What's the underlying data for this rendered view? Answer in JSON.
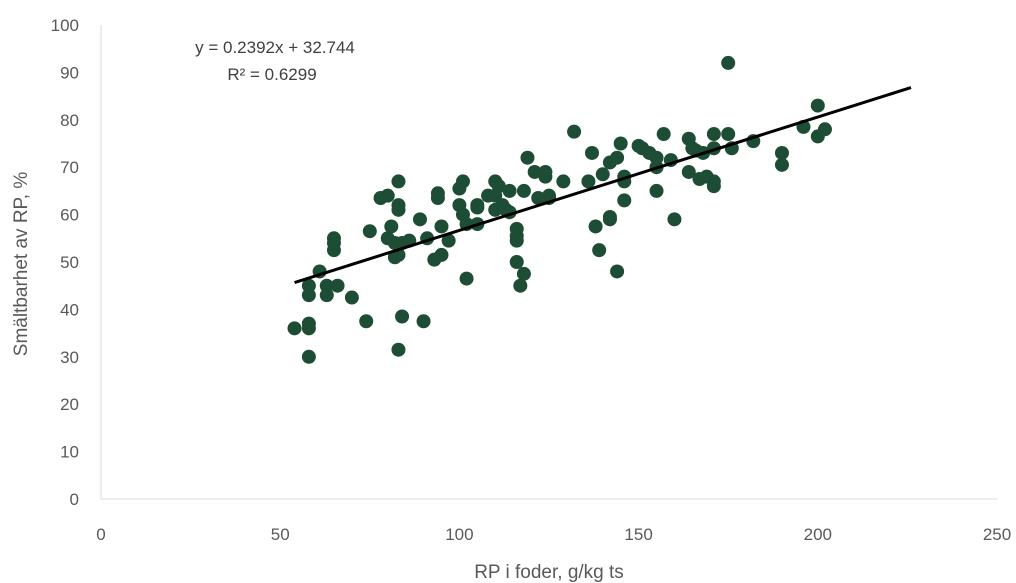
{
  "chart_data": {
    "type": "scatter",
    "xlabel": "RP i foder, g/kg ts",
    "ylabel": "Smältbarhet av RP, %",
    "xlim": [
      0,
      250
    ],
    "ylim": [
      0,
      100
    ],
    "xticks": [
      0,
      50,
      100,
      150,
      200,
      250
    ],
    "yticks": [
      0,
      10,
      20,
      30,
      40,
      50,
      60,
      70,
      80,
      90,
      100
    ],
    "grid": false,
    "marker_color": "#1e4d35",
    "trendline": {
      "slope": 0.2392,
      "intercept": 32.744,
      "x_range": [
        54,
        226
      ],
      "color": "#000000",
      "equation": "y = 0.2392x + 32.744",
      "r2": "R² = 0.6299"
    },
    "points": [
      [
        54,
        36
      ],
      [
        58,
        30
      ],
      [
        58,
        36
      ],
      [
        58,
        37
      ],
      [
        58,
        43
      ],
      [
        58,
        45
      ],
      [
        61,
        48
      ],
      [
        63,
        43
      ],
      [
        63,
        45
      ],
      [
        65,
        52.5
      ],
      [
        65,
        54
      ],
      [
        65,
        55
      ],
      [
        66,
        45
      ],
      [
        70,
        42.5
      ],
      [
        74,
        37.5
      ],
      [
        75,
        56.5
      ],
      [
        78,
        63.5
      ],
      [
        80,
        55
      ],
      [
        80,
        64
      ],
      [
        81,
        57.5
      ],
      [
        82,
        51
      ],
      [
        82,
        54
      ],
      [
        83,
        31.5
      ],
      [
        83,
        51.5
      ],
      [
        83,
        61
      ],
      [
        83,
        62
      ],
      [
        83,
        67
      ],
      [
        84,
        38.5
      ],
      [
        84,
        54
      ],
      [
        86,
        54.5
      ],
      [
        89,
        59
      ],
      [
        90,
        37.5
      ],
      [
        91,
        55
      ],
      [
        93,
        50.5
      ],
      [
        94,
        63.5
      ],
      [
        94,
        64.5
      ],
      [
        95,
        51.5
      ],
      [
        95,
        57.5
      ],
      [
        97,
        54.5
      ],
      [
        100,
        62
      ],
      [
        100,
        65.5
      ],
      [
        101,
        60
      ],
      [
        101,
        67
      ],
      [
        102,
        46.5
      ],
      [
        102,
        58
      ],
      [
        105,
        58
      ],
      [
        105,
        61.5
      ],
      [
        105,
        62
      ],
      [
        108,
        64
      ],
      [
        110,
        61
      ],
      [
        110,
        64
      ],
      [
        110,
        67
      ],
      [
        111,
        66
      ],
      [
        112,
        62
      ],
      [
        113,
        61
      ],
      [
        114,
        60.5
      ],
      [
        114,
        65
      ],
      [
        116,
        50
      ],
      [
        116,
        54.5
      ],
      [
        116,
        55.5
      ],
      [
        116,
        57
      ],
      [
        117,
        45
      ],
      [
        118,
        47.5
      ],
      [
        118,
        65
      ],
      [
        119,
        72
      ],
      [
        121,
        69
      ],
      [
        122,
        63.5
      ],
      [
        124,
        68
      ],
      [
        124,
        69
      ],
      [
        125,
        63.5
      ],
      [
        125,
        64
      ],
      [
        129,
        67
      ],
      [
        132,
        77.5
      ],
      [
        136,
        67
      ],
      [
        137,
        73
      ],
      [
        138,
        57.5
      ],
      [
        139,
        52.5
      ],
      [
        140,
        68.5
      ],
      [
        142,
        59
      ],
      [
        142,
        59.5
      ],
      [
        142,
        71
      ],
      [
        144,
        48
      ],
      [
        144,
        72
      ],
      [
        145,
        75
      ],
      [
        146,
        63
      ],
      [
        146,
        67
      ],
      [
        146,
        68
      ],
      [
        150,
        74.5
      ],
      [
        151,
        74
      ],
      [
        153,
        73
      ],
      [
        155,
        65
      ],
      [
        155,
        70
      ],
      [
        155,
        72
      ],
      [
        157,
        77
      ],
      [
        159,
        71.5
      ],
      [
        160,
        59
      ],
      [
        164,
        69
      ],
      [
        164,
        76
      ],
      [
        165,
        74
      ],
      [
        166,
        73.5
      ],
      [
        167,
        67.5
      ],
      [
        168,
        73
      ],
      [
        169,
        68
      ],
      [
        171,
        66
      ],
      [
        171,
        67
      ],
      [
        171,
        74
      ],
      [
        171,
        77
      ],
      [
        175,
        77
      ],
      [
        175,
        92
      ],
      [
        176,
        74
      ],
      [
        182,
        75.5
      ],
      [
        190,
        70.5
      ],
      [
        190,
        73
      ],
      [
        196,
        78.5
      ],
      [
        200,
        83
      ],
      [
        200,
        76.5
      ],
      [
        202,
        78
      ]
    ]
  }
}
